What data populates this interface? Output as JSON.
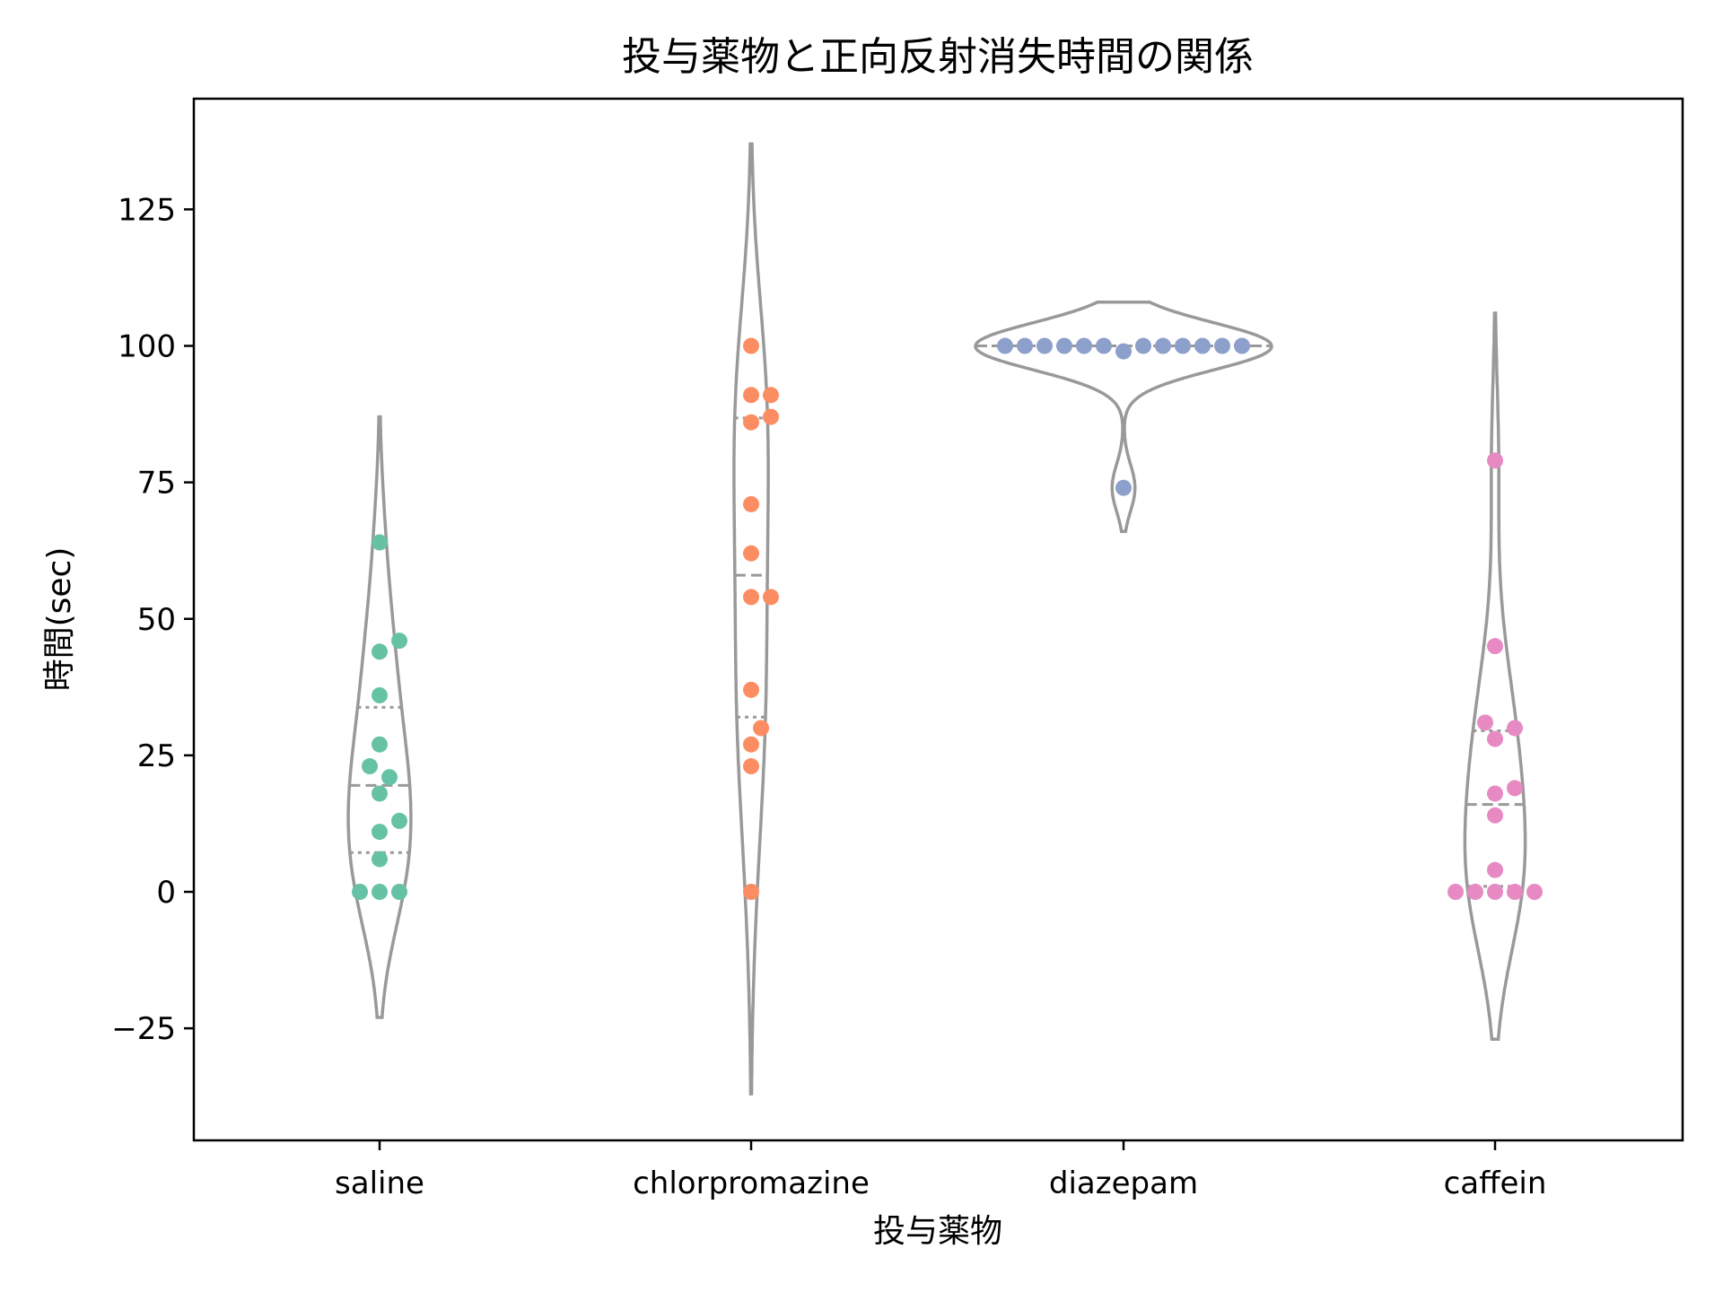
{
  "chart_data": {
    "type": "violin+swarm",
    "title": "投与薬物と正向反射消失時間の関係",
    "xlabel": "投与薬物",
    "ylabel": "時間(sec)",
    "categories": [
      "saline",
      "chlorpromazine",
      "diazepam",
      "caffein"
    ],
    "ylim": [
      -40,
      145
    ],
    "yticks": [
      -25,
      0,
      25,
      50,
      75,
      100,
      125
    ],
    "grid": false,
    "legend": "none",
    "colors": [
      "#66c2a5",
      "#fc8d62",
      "#8da0cb",
      "#e78ac3"
    ],
    "line_color": "#999999",
    "series": [
      {
        "values": [
          0,
          0,
          0,
          6,
          11,
          13,
          18,
          21,
          23,
          27,
          36,
          44,
          46,
          64
        ],
        "median": 19.5,
        "q1": 7.2,
        "q3": 33.8,
        "kde_range": [
          -23,
          87
        ]
      },
      {
        "values": [
          0,
          23,
          27,
          30,
          37,
          54,
          54,
          62,
          71,
          86,
          87,
          91,
          91,
          100
        ],
        "median": 58,
        "q1": 32,
        "q3": 86.8,
        "kde_range": [
          -37,
          137
        ]
      },
      {
        "values": [
          74,
          99,
          100,
          100,
          100,
          100,
          100,
          100,
          100,
          100,
          100,
          100,
          100,
          100
        ],
        "median": 100,
        "q1": 100,
        "q3": 100,
        "kde_range": [
          66,
          108
        ]
      },
      {
        "values": [
          0,
          0,
          0,
          0,
          0,
          4,
          14,
          18,
          19,
          28,
          30,
          31,
          45,
          79
        ],
        "median": 16,
        "q1": 1,
        "q3": 29.5,
        "kde_range": [
          -27,
          106
        ]
      }
    ]
  }
}
